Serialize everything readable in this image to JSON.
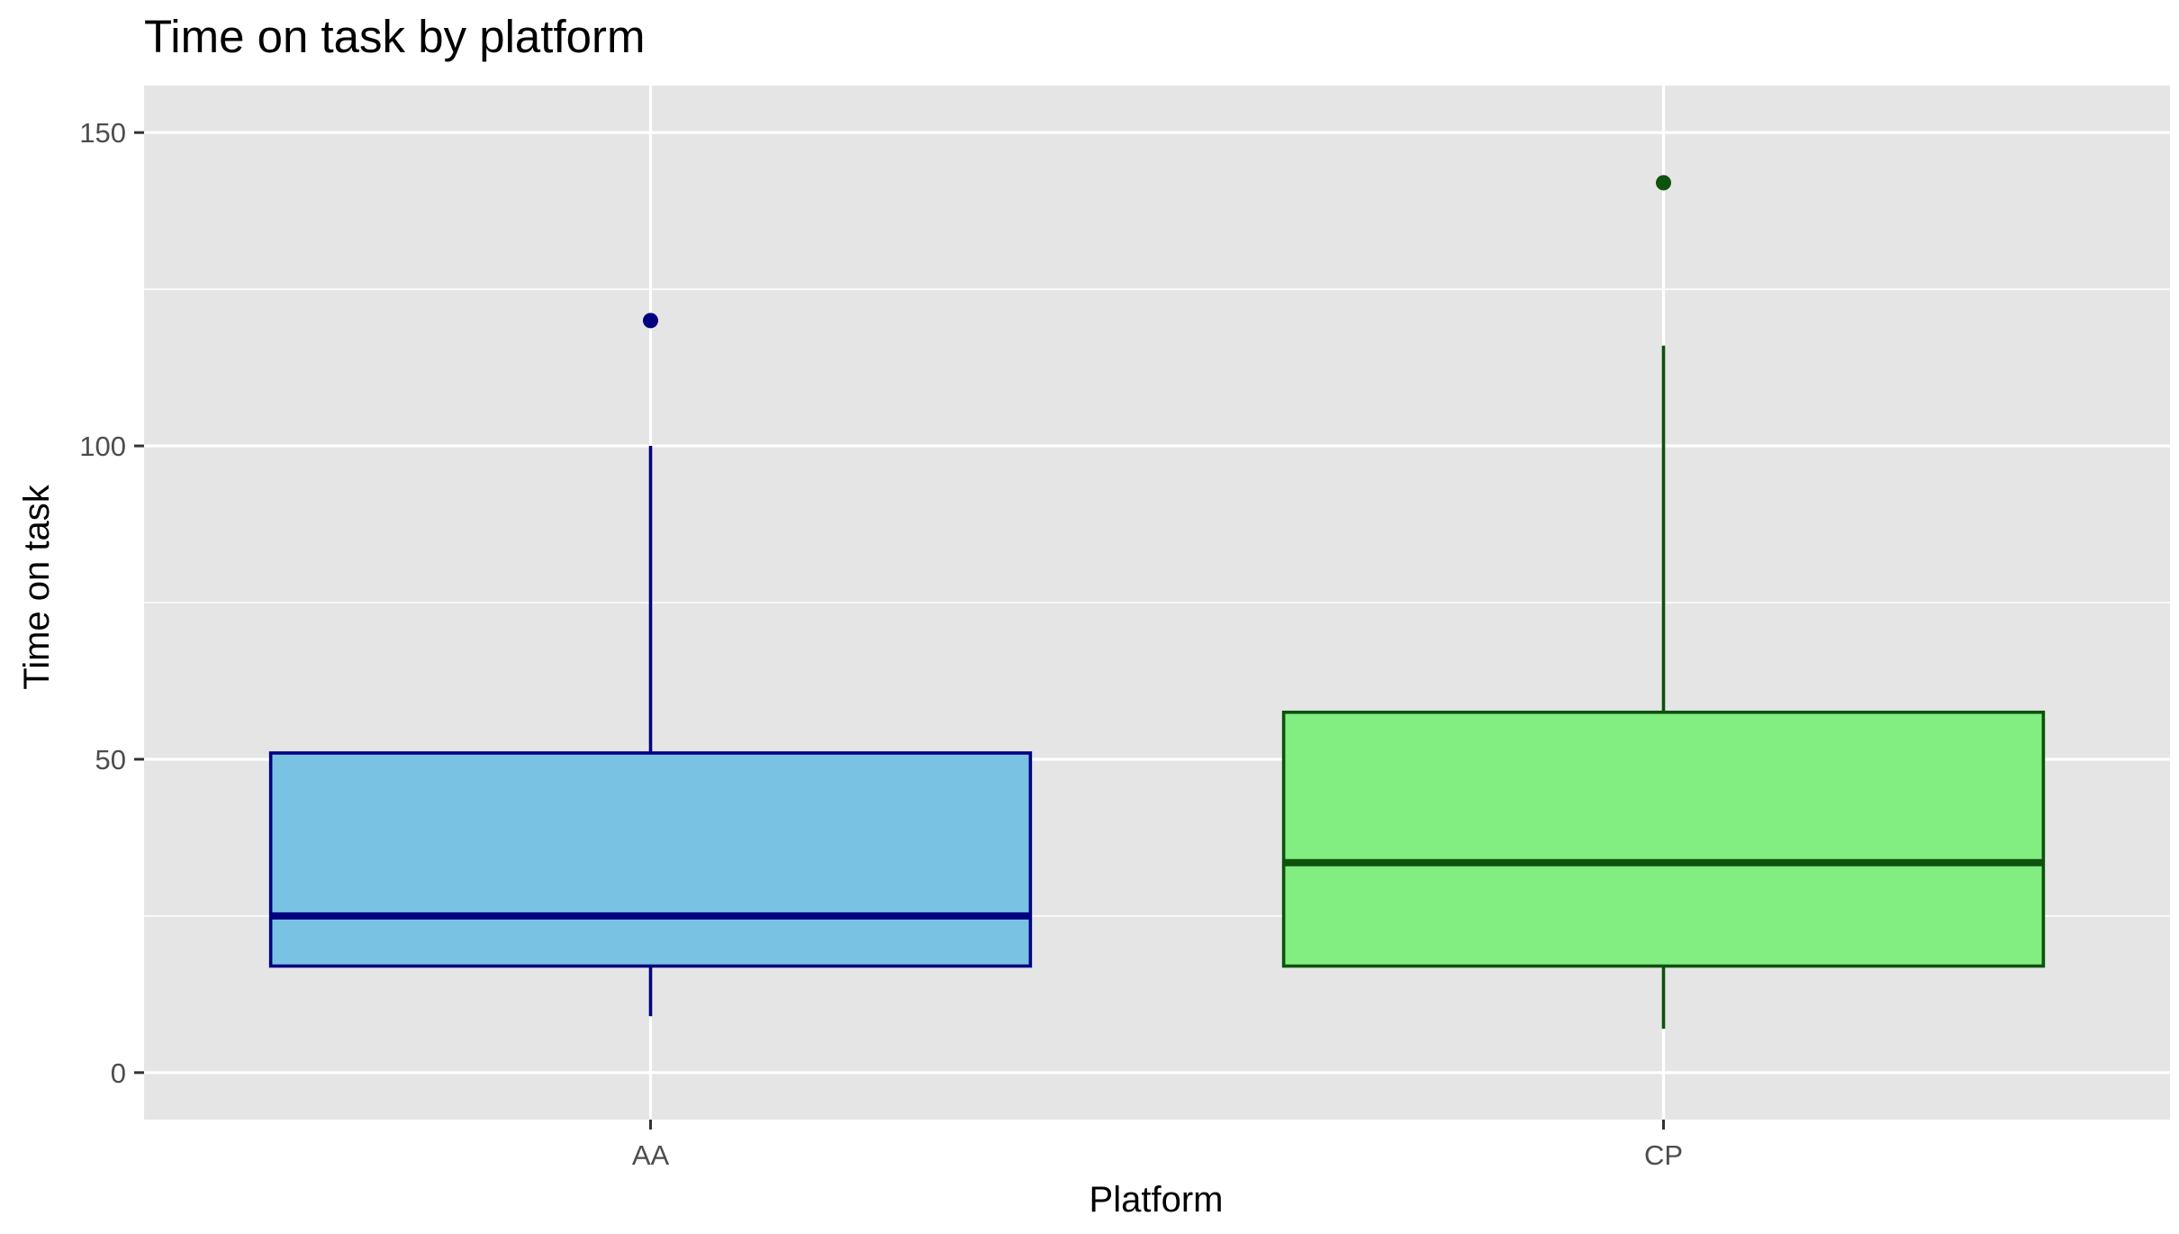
{
  "chart_data": {
    "type": "boxplot",
    "title": "Time on task by platform",
    "xlabel": "Platform",
    "ylabel": "Time on task",
    "ylim": [
      -7.5,
      157.5
    ],
    "yticks": [
      0,
      50,
      100,
      150
    ],
    "grid": true,
    "legend": "none",
    "categories": [
      "AA",
      "CP"
    ],
    "boxes": [
      {
        "category": "AA",
        "whisker_low": 9,
        "q1": 17,
        "median": 25,
        "q3": 51,
        "whisker_high": 100,
        "outliers": [
          120
        ],
        "fill": "#79c2e4",
        "stroke": "#000080"
      },
      {
        "category": "CP",
        "whisker_low": 7,
        "q1": 17,
        "median": 33.5,
        "q3": 57.5,
        "whisker_high": 116,
        "outliers": [
          142
        ],
        "fill": "#82ed80",
        "stroke": "#0d520d"
      }
    ],
    "colors": {
      "panel_background": "#e5e5e5",
      "grid": "#ffffff",
      "tick_mark": "#333333"
    }
  }
}
